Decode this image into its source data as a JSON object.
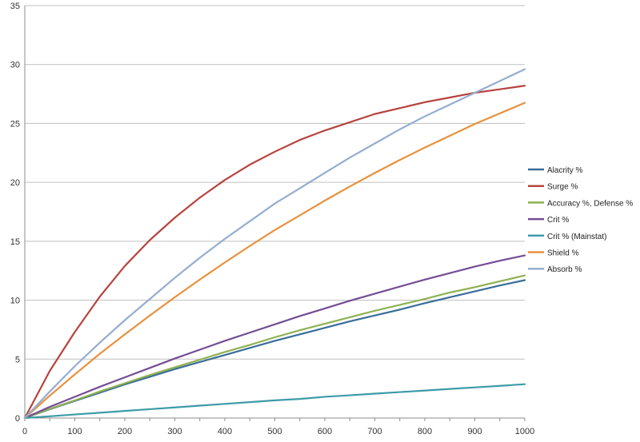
{
  "chart_data": {
    "type": "line",
    "title": "",
    "xlabel": "",
    "ylabel": "",
    "xlim": [
      0,
      1000
    ],
    "ylim": [
      0,
      35
    ],
    "x_ticks": [
      0,
      100,
      200,
      300,
      400,
      500,
      600,
      700,
      800,
      900,
      1000
    ],
    "y_ticks": [
      0,
      5,
      10,
      15,
      20,
      25,
      30,
      35
    ],
    "grid": "horizontal",
    "legend_position": "right",
    "x": [
      0,
      50,
      100,
      150,
      200,
      250,
      300,
      350,
      400,
      450,
      500,
      550,
      600,
      650,
      700,
      750,
      800,
      850,
      900,
      950,
      1000
    ],
    "series": [
      {
        "name": "Alacrity %",
        "color": "#3a6d9a",
        "values": [
          0,
          0.75,
          1.45,
          2.15,
          2.85,
          3.5,
          4.15,
          4.75,
          5.35,
          5.95,
          6.55,
          7.1,
          7.65,
          8.2,
          8.7,
          9.2,
          9.75,
          10.25,
          10.75,
          11.25,
          11.7
        ]
      },
      {
        "name": "Surge %",
        "color": "#b7443f",
        "values": [
          0,
          4.0,
          7.3,
          10.3,
          12.9,
          15.1,
          17.0,
          18.7,
          20.2,
          21.5,
          22.6,
          23.6,
          24.4,
          25.1,
          25.8,
          26.3,
          26.8,
          27.2,
          27.6,
          27.9,
          28.2
        ]
      },
      {
        "name": "Accuracy %, Defense %",
        "color": "#8fb151",
        "values": [
          0,
          0.78,
          1.5,
          2.25,
          2.95,
          3.65,
          4.3,
          4.95,
          5.6,
          6.2,
          6.85,
          7.45,
          8.0,
          8.55,
          9.1,
          9.6,
          10.1,
          10.65,
          11.1,
          11.6,
          12.1
        ]
      },
      {
        "name": "Crit %",
        "color": "#744d94",
        "values": [
          0,
          0.95,
          1.8,
          2.65,
          3.45,
          4.25,
          5.05,
          5.8,
          6.55,
          7.25,
          7.95,
          8.65,
          9.3,
          9.95,
          10.55,
          11.15,
          11.75,
          12.3,
          12.85,
          13.35,
          13.8
        ]
      },
      {
        "name": "Crit % (Mainstat)",
        "color": "#3d9ba8",
        "values": [
          0,
          0.15,
          0.3,
          0.45,
          0.6,
          0.75,
          0.9,
          1.05,
          1.2,
          1.35,
          1.5,
          1.62,
          1.8,
          1.93,
          2.07,
          2.2,
          2.33,
          2.47,
          2.6,
          2.73,
          2.87
        ]
      },
      {
        "name": "Shield %",
        "color": "#e8913d",
        "values": [
          0,
          1.9,
          3.7,
          5.45,
          7.1,
          8.7,
          10.25,
          11.75,
          13.2,
          14.6,
          15.95,
          17.2,
          18.45,
          19.65,
          20.8,
          21.9,
          22.95,
          23.95,
          24.95,
          25.85,
          26.75
        ]
      },
      {
        "name": "Absorb %",
        "color": "#94aed0",
        "values": [
          0,
          2.25,
          4.4,
          6.4,
          8.3,
          10.1,
          11.9,
          13.6,
          15.2,
          16.7,
          18.2,
          19.5,
          20.8,
          22.1,
          23.3,
          24.5,
          25.6,
          26.6,
          27.6,
          28.6,
          29.6
        ]
      }
    ]
  }
}
